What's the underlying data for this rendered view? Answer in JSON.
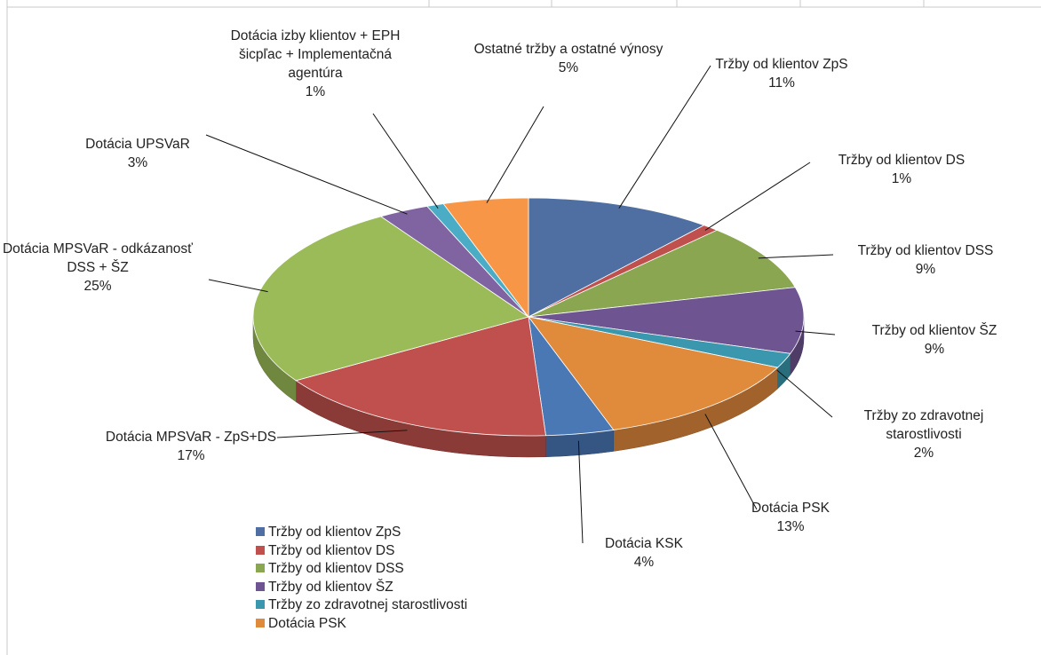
{
  "chart_data": {
    "type": "pie",
    "categories": [
      "Tržby od klientov ZpS",
      "Tržby od klientov DS",
      "Tržby od klientov DSS",
      "Tržby od klientov ŠZ",
      "Tržby zo zdravotnej starostlivosti",
      "Dotácia PSK",
      "Dotácia KSK",
      "Dotácia MPSVaR - ZpS+DS",
      "Dotácia MPSVaR - odkázanosť DSS + ŠZ",
      "Dotácia UPSVaR",
      "Dotácia izby klientov + EPH šicpľac + Implementačná agentúra",
      "Ostatné tržby a ostatné výnosy"
    ],
    "values": [
      11,
      1,
      9,
      9,
      2,
      13,
      4,
      17,
      25,
      3,
      1,
      5
    ],
    "value_labels": [
      "11%",
      "1%",
      "9%",
      "9%",
      "2%",
      "13%",
      "4%",
      "17%",
      "25%",
      "3%",
      "1%",
      "5%"
    ],
    "colors": [
      "#4f6fa3",
      "#c0504d",
      "#8aa650",
      "#6e5591",
      "#3b97ad",
      "#e08a3c",
      "#4a78b5",
      "#c0504d",
      "#9bbb59",
      "#8064a2",
      "#4bacc6",
      "#f79646"
    ],
    "legend_count": 6,
    "legend": "bottom-left"
  }
}
